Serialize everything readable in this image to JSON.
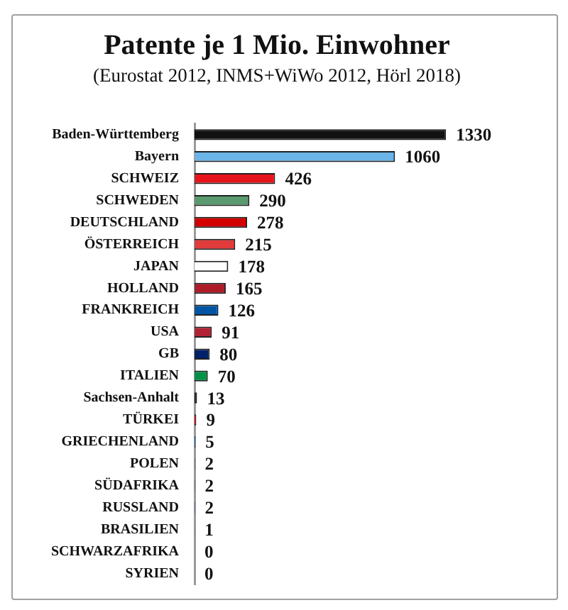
{
  "chart_data": {
    "type": "bar",
    "orientation": "horizontal",
    "title": "Patente je 1 Mio. Einwohner",
    "subtitle": "(Eurostat 2012, INMS+WiWo 2012, Hörl 2018)",
    "categories": [
      "Baden-Württemberg",
      "Bayern",
      "SCHWEIZ",
      "SCHWEDEN",
      "DEUTSCHLAND",
      "ÖSTERREICH",
      "JAPAN",
      "HOLLAND",
      "FRANKREICH",
      "USA",
      "GB",
      "ITALIEN",
      "Sachsen-Anhalt",
      "TÜRKEI",
      "GRIECHENLAND",
      "POLEN",
      "SÜDAFRIKA",
      "RUSSLAND",
      "BRASILIEN",
      "SCHWARZAFRIKA",
      "SYRIEN"
    ],
    "values": [
      1330,
      1060,
      426,
      290,
      278,
      215,
      178,
      165,
      126,
      91,
      80,
      70,
      13,
      9,
      5,
      2,
      2,
      2,
      1,
      0,
      0
    ],
    "colors": [
      "#111111",
      "#6bb4e8",
      "#e8141c",
      "#5a9a6e",
      "#d40000",
      "#e23b3b",
      "#ffffff",
      "#ae1c28",
      "#0055a4",
      "#b22234",
      "#012169",
      "#009246",
      "#222222",
      "#e30a17",
      "#0d5eaf",
      "#dc143c",
      "#007a4d",
      "#0039a6",
      "#009c3b",
      "#111111",
      "#111111"
    ],
    "xlim": [
      0,
      1900
    ],
    "tick_labels": "y",
    "data_labels": true
  }
}
